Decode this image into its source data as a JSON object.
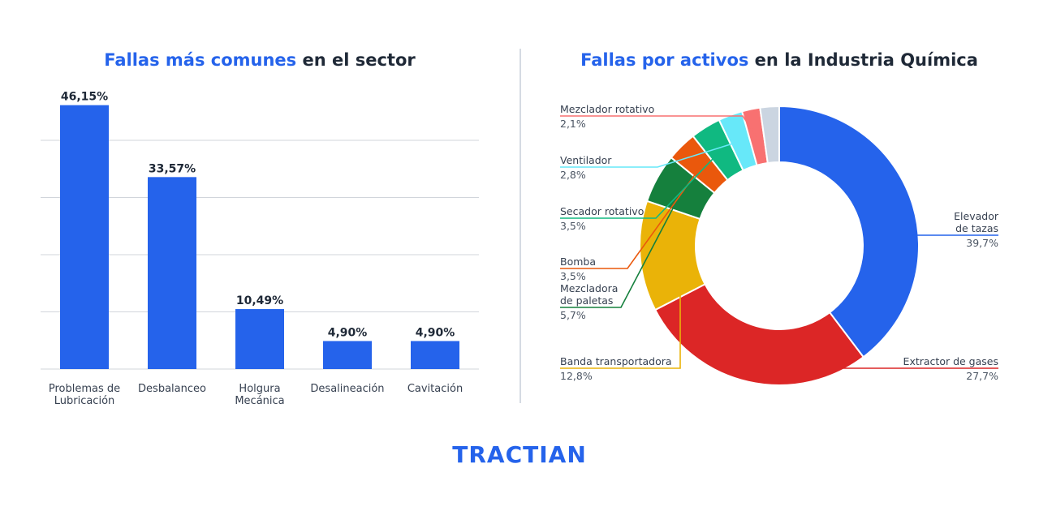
{
  "brand": {
    "logo_text": "TRACTIAN",
    "accent_color": "#2563eb"
  },
  "chart_data": [
    {
      "type": "bar",
      "title_accent": "Fallas más comunes",
      "title_rest": " en el sector",
      "categories": [
        [
          "Problemas de",
          "Lubricación"
        ],
        [
          "Desbalanceo"
        ],
        [
          "Holgura",
          "Mecánica"
        ],
        [
          "Desalineación"
        ],
        [
          "Cavitación"
        ]
      ],
      "values": [
        46.15,
        33.57,
        10.49,
        4.9,
        4.9
      ],
      "value_labels": [
        "46,15%",
        "33,57%",
        "10,49%",
        "4,90%",
        "4,90%"
      ],
      "ylim": [
        0,
        50
      ],
      "grid": true,
      "bar_color": "#2563eb"
    },
    {
      "type": "pie",
      "title_accent": "Fallas por activos",
      "title_rest": " en la Industria Química",
      "slices": [
        {
          "name": [
            "Elevador",
            "de tazas"
          ],
          "value": 39.7,
          "label": "39,7%",
          "color": "#2563eb"
        },
        {
          "name": [
            "Extractor de gases"
          ],
          "value": 27.7,
          "label": "27,7%",
          "color": "#dc2626"
        },
        {
          "name": [
            "Banda transportadora"
          ],
          "value": 12.8,
          "label": "12,8%",
          "color": "#eab308"
        },
        {
          "name": [
            "Mezcladora",
            "de paletas"
          ],
          "value": 5.7,
          "label": "5,7%",
          "color": "#15803d"
        },
        {
          "name": [
            "Bomba"
          ],
          "value": 3.5,
          "label": "3,5%",
          "color": "#ea580c"
        },
        {
          "name": [
            "Secador rotativo"
          ],
          "value": 3.5,
          "label": "3,5%",
          "color": "#10b981"
        },
        {
          "name": [
            "Ventilador"
          ],
          "value": 2.8,
          "label": "2,8%",
          "color": "#67e8f9"
        },
        {
          "name": [
            "Mezclador rotativo"
          ],
          "value": 2.1,
          "label": "2,1%",
          "color": "#f87171"
        },
        {
          "name": [],
          "value": 2.2,
          "label": "",
          "color": "#cbd5e1"
        }
      ]
    }
  ]
}
